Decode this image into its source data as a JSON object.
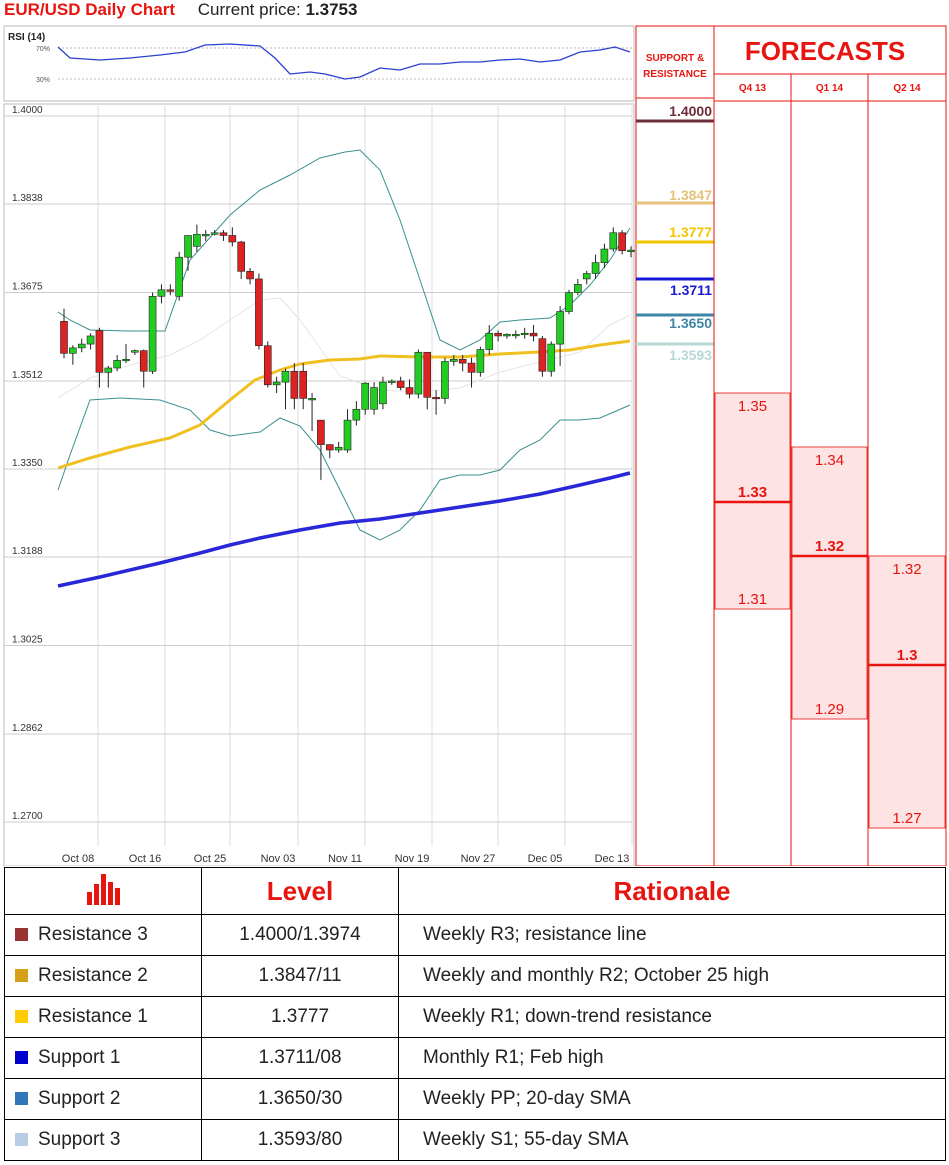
{
  "header": {
    "title": "EUR/USD Daily Chart",
    "price_label": "Current price:",
    "price_value": "1.3753"
  },
  "rsi": {
    "label": "RSI (14)",
    "levels": [
      "70%",
      "30%"
    ]
  },
  "sr_panel": {
    "title_line1": "SUPPORT &",
    "title_line2": "RESISTANCE"
  },
  "forecasts": {
    "title": "FORECASTS",
    "quarters": [
      {
        "label": "Q4 13",
        "high": "1.35",
        "mid": "1.33",
        "low": "1.31",
        "high_v": 1.35,
        "mid_v": 1.33,
        "low_v": 1.31
      },
      {
        "label": "Q1 14",
        "high": "1.34",
        "mid": "1.32",
        "low": "1.29",
        "high_v": 1.34,
        "mid_v": 1.32,
        "low_v": 1.29
      },
      {
        "label": "Q2 14",
        "high": "1.32",
        "mid": "1.3",
        "low": "1.27",
        "high_v": 1.32,
        "mid_v": 1.3,
        "low_v": 1.27
      }
    ],
    "colors": {
      "line": "#e8140f",
      "fill": "#fde3e3"
    }
  },
  "levels_colors": [
    "#6e2b3b",
    "#e6c27a",
    "#f5c400",
    "#1a1ad6",
    "#3e86a6",
    "#b6d9d6"
  ],
  "chart_data": {
    "type": "candlestick",
    "ylim": [
      1.27,
      1.4
    ],
    "yticks": [
      "1.4000",
      "1.3838",
      "1.3675",
      "1.3512",
      "1.3350",
      "1.3188",
      "1.3025",
      "1.2862",
      "1.2700"
    ],
    "xticks": [
      "Oct 08",
      "Oct 16",
      "Oct 25",
      "Nov 03",
      "Nov 11",
      "Nov 19",
      "Nov 27",
      "Dec 05",
      "Dec 13"
    ],
    "levels": [
      "1.4000",
      "1.3847",
      "1.3777",
      "1.3711",
      "1.3650",
      "1.3593"
    ],
    "level_values": [
      1.4,
      1.3847,
      1.3777,
      1.3711,
      1.365,
      1.3593
    ],
    "candles": [
      [
        1.3622,
        1.3563,
        1.3645,
        1.3554
      ],
      [
        1.3563,
        1.3573,
        1.3578,
        1.3542
      ],
      [
        1.3573,
        1.358,
        1.359,
        1.3565
      ],
      [
        1.358,
        1.3595,
        1.36,
        1.357
      ],
      [
        1.3605,
        1.3528,
        1.361,
        1.35
      ],
      [
        1.3528,
        1.3536,
        1.354,
        1.35
      ],
      [
        1.3536,
        1.355,
        1.356,
        1.353
      ],
      [
        1.355,
        1.3552,
        1.358,
        1.3545
      ],
      [
        1.3565,
        1.3568,
        1.357,
        1.356
      ],
      [
        1.3568,
        1.353,
        1.357,
        1.35
      ],
      [
        1.353,
        1.3668,
        1.3675,
        1.3525
      ],
      [
        1.3668,
        1.368,
        1.369,
        1.3655
      ],
      [
        1.368,
        1.3678,
        1.369,
        1.367
      ],
      [
        1.3668,
        1.374,
        1.375,
        1.366
      ],
      [
        1.374,
        1.378,
        1.378,
        1.3715
      ],
      [
        1.376,
        1.3782,
        1.38,
        1.375
      ],
      [
        1.378,
        1.3782,
        1.379,
        1.377
      ],
      [
        1.3785,
        1.3785,
        1.379,
        1.378
      ],
      [
        1.3785,
        1.378,
        1.379,
        1.377
      ],
      [
        1.378,
        1.3768,
        1.3795,
        1.376
      ],
      [
        1.3768,
        1.3714,
        1.377,
        1.37
      ],
      [
        1.3714,
        1.37,
        1.372,
        1.369
      ],
      [
        1.37,
        1.3577,
        1.371,
        1.357
      ],
      [
        1.3577,
        1.3505,
        1.3585,
        1.35
      ],
      [
        1.3505,
        1.351,
        1.352,
        1.349
      ],
      [
        1.351,
        1.353,
        1.3535,
        1.346
      ],
      [
        1.353,
        1.348,
        1.3545,
        1.346
      ],
      [
        1.353,
        1.348,
        1.3545,
        1.346
      ],
      [
        1.348,
        1.348,
        1.349,
        1.342
      ],
      [
        1.344,
        1.3395,
        1.344,
        1.333
      ],
      [
        1.3395,
        1.3385,
        1.3395,
        1.337
      ],
      [
        1.3385,
        1.339,
        1.34,
        1.338
      ],
      [
        1.3385,
        1.344,
        1.346,
        1.338
      ],
      [
        1.344,
        1.346,
        1.3475,
        1.343
      ],
      [
        1.346,
        1.3508,
        1.351,
        1.345
      ],
      [
        1.346,
        1.35,
        1.351,
        1.345
      ],
      [
        1.347,
        1.351,
        1.352,
        1.346
      ],
      [
        1.351,
        1.3512,
        1.3515,
        1.3505
      ],
      [
        1.3512,
        1.35,
        1.352,
        1.3495
      ],
      [
        1.35,
        1.3488,
        1.3515,
        1.348
      ],
      [
        1.3488,
        1.3565,
        1.357,
        1.348
      ],
      [
        1.3565,
        1.3482,
        1.3565,
        1.346
      ],
      [
        1.3482,
        1.348,
        1.3495,
        1.345
      ],
      [
        1.348,
        1.3548,
        1.3555,
        1.347
      ],
      [
        1.3548,
        1.3552,
        1.356,
        1.354
      ],
      [
        1.3552,
        1.3545,
        1.356,
        1.353
      ],
      [
        1.3545,
        1.3528,
        1.3555,
        1.35
      ],
      [
        1.3528,
        1.357,
        1.3575,
        1.352
      ],
      [
        1.357,
        1.36,
        1.3615,
        1.356
      ],
      [
        1.36,
        1.3595,
        1.3605,
        1.3585
      ],
      [
        1.3595,
        1.3598,
        1.36,
        1.359
      ],
      [
        1.3598,
        1.3598,
        1.3605,
        1.359
      ],
      [
        1.3598,
        1.36,
        1.361,
        1.359
      ],
      [
        1.36,
        1.3595,
        1.3615,
        1.3585
      ],
      [
        1.359,
        1.353,
        1.3595,
        1.352
      ],
      [
        1.353,
        1.358,
        1.3585,
        1.352
      ],
      [
        1.358,
        1.364,
        1.365,
        1.354
      ],
      [
        1.364,
        1.3675,
        1.368,
        1.3635
      ],
      [
        1.3675,
        1.369,
        1.37,
        1.367
      ],
      [
        1.37,
        1.371,
        1.3715,
        1.369
      ],
      [
        1.371,
        1.373,
        1.3745,
        1.37
      ],
      [
        1.373,
        1.3755,
        1.3765,
        1.372
      ],
      [
        1.3755,
        1.3785,
        1.3795,
        1.375
      ],
      [
        1.3785,
        1.3752,
        1.379,
        1.3745
      ],
      [
        1.3752,
        1.3753,
        1.376,
        1.374
      ]
    ]
  },
  "table": {
    "icon": "bar-chart-icon",
    "header": {
      "level": "Level",
      "rationale": "Rationale"
    },
    "rows": [
      {
        "name": "Resistance 3",
        "level": "1.4000/1.3974",
        "rationale": "Weekly R3; resistance line",
        "color": "#993333"
      },
      {
        "name": "Resistance 2",
        "level": "1.3847/11",
        "rationale": "Weekly and monthly R2; October 25 high",
        "color": "#d4a017"
      },
      {
        "name": "Resistance 1",
        "level": "1.3777",
        "rationale": "Weekly R1; down-trend  resistance",
        "color": "#ffcc00"
      },
      {
        "name": "Support 1",
        "level": "1.3711/08",
        "rationale": "Monthly R1; Feb high",
        "color": "#0000cc"
      },
      {
        "name": "Support 2",
        "level": "1.3650/30",
        "rationale": "Weekly PP; 20-day SMA",
        "color": "#3377bb"
      },
      {
        "name": "Support 3",
        "level": "1.3593/80",
        "rationale": "Weekly S1; 55-day SMA",
        "color": "#b8cce4"
      }
    ]
  }
}
